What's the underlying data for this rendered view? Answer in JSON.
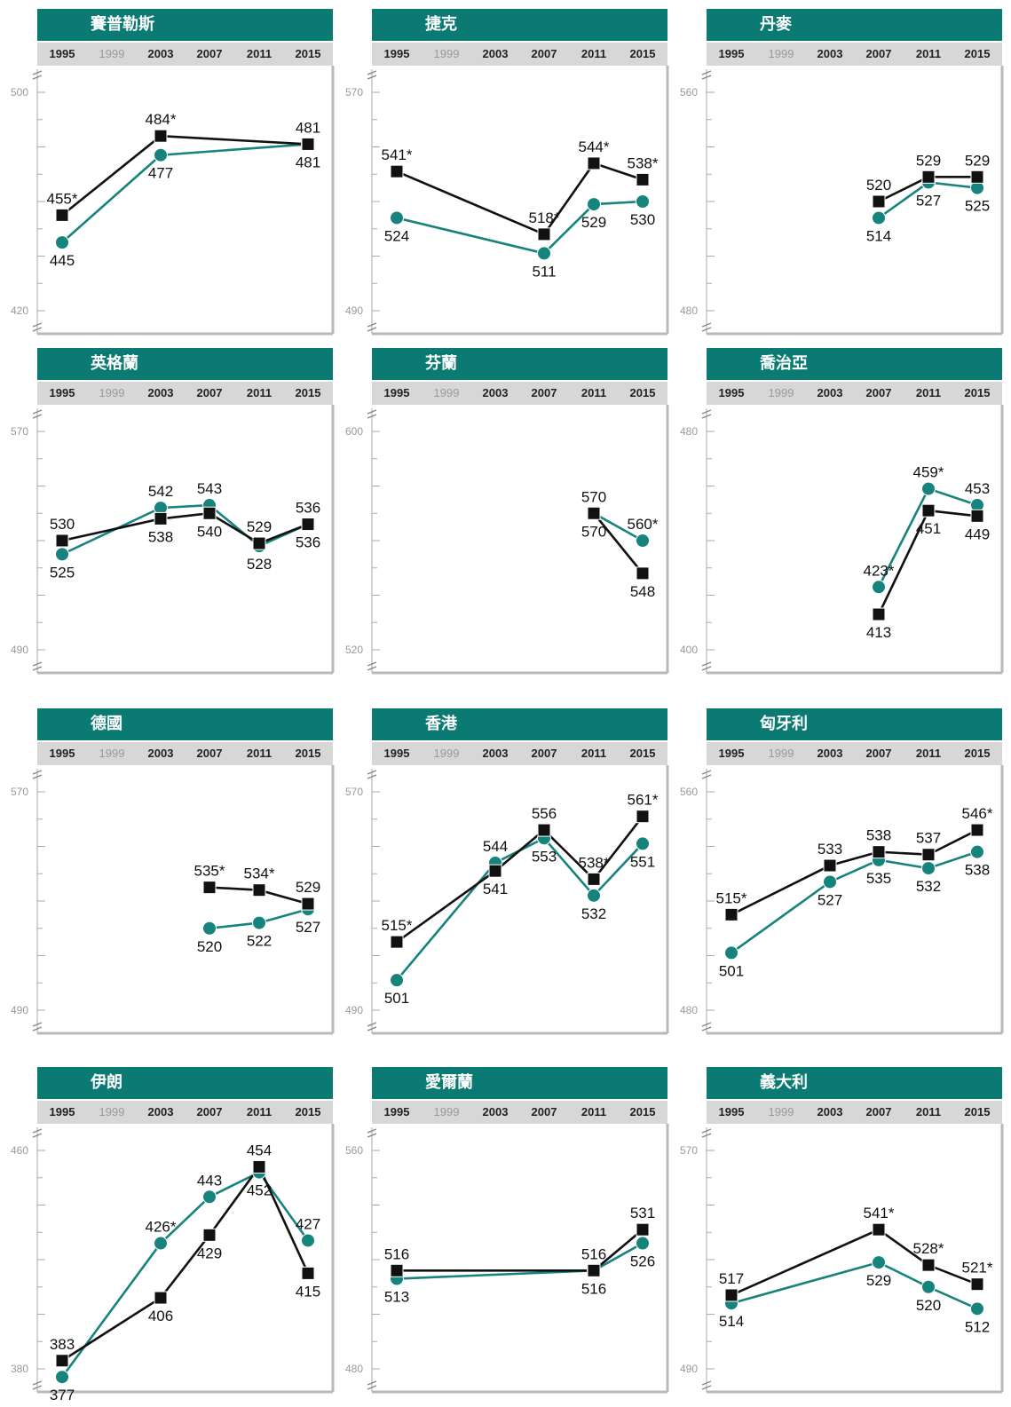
{
  "colors": {
    "header": "#0b7a73",
    "series_a": "#111111",
    "series_b": "#17837d",
    "axis": "#aaaaaa"
  },
  "years": [
    "1995",
    "1999",
    "2003",
    "2007",
    "2011",
    "2015"
  ],
  "faded_year": "1999",
  "chart_data": [
    {
      "type": "line",
      "title": "賽普勒斯",
      "ylim": [
        420,
        500
      ],
      "ytick_labels": [
        "500",
        "420"
      ],
      "series": [
        {
          "values": [
            {
              "x": "1995",
              "y": 455,
              "label": "455*"
            },
            {
              "x": "2003",
              "y": 484,
              "label": "484*"
            },
            {
              "x": "2015",
              "y": 481,
              "label": "481"
            }
          ]
        },
        {
          "values": [
            {
              "x": "1995",
              "y": 445,
              "label": "445"
            },
            {
              "x": "2003",
              "y": 477,
              "label": "477"
            },
            {
              "x": "2015",
              "y": 481,
              "label": "481"
            }
          ]
        }
      ]
    },
    {
      "type": "line",
      "title": "捷克",
      "ylim": [
        490,
        570
      ],
      "ytick_labels": [
        "570",
        "490"
      ],
      "series": [
        {
          "values": [
            {
              "x": "1995",
              "y": 541,
              "label": "541*"
            },
            {
              "x": "2007",
              "y": 518,
              "label": "518*"
            },
            {
              "x": "2011",
              "y": 544,
              "label": "544*"
            },
            {
              "x": "2015",
              "y": 538,
              "label": "538*"
            }
          ]
        },
        {
          "values": [
            {
              "x": "1995",
              "y": 524,
              "label": "524"
            },
            {
              "x": "2007",
              "y": 511,
              "label": "511"
            },
            {
              "x": "2011",
              "y": 529,
              "label": "529"
            },
            {
              "x": "2015",
              "y": 530,
              "label": "530"
            }
          ]
        }
      ]
    },
    {
      "type": "line",
      "title": "丹麥",
      "ylim": [
        480,
        560
      ],
      "ytick_labels": [
        "560",
        "480"
      ],
      "series": [
        {
          "values": [
            {
              "x": "2007",
              "y": 520,
              "label": "520"
            },
            {
              "x": "2011",
              "y": 529,
              "label": "529"
            },
            {
              "x": "2015",
              "y": 529,
              "label": "529"
            }
          ]
        },
        {
          "values": [
            {
              "x": "2007",
              "y": 514,
              "label": "514"
            },
            {
              "x": "2011",
              "y": 527,
              "label": "527"
            },
            {
              "x": "2015",
              "y": 525,
              "label": "525"
            }
          ]
        }
      ]
    },
    {
      "type": "line",
      "title": "英格蘭",
      "ylim": [
        490,
        570
      ],
      "ytick_labels": [
        "570",
        "490"
      ],
      "series": [
        {
          "values": [
            {
              "x": "1995",
              "y": 530,
              "label": "530"
            },
            {
              "x": "2003",
              "y": 538,
              "label": "538"
            },
            {
              "x": "2007",
              "y": 540,
              "label": "540"
            },
            {
              "x": "2011",
              "y": 529,
              "label": "529"
            },
            {
              "x": "2015",
              "y": 536,
              "label": "536"
            }
          ]
        },
        {
          "values": [
            {
              "x": "1995",
              "y": 525,
              "label": "525"
            },
            {
              "x": "2003",
              "y": 542,
              "label": "542"
            },
            {
              "x": "2007",
              "y": 543,
              "label": "543"
            },
            {
              "x": "2011",
              "y": 528,
              "label": "528"
            },
            {
              "x": "2015",
              "y": 536,
              "label": "536"
            }
          ]
        }
      ]
    },
    {
      "type": "line",
      "title": "芬蘭",
      "ylim": [
        520,
        600
      ],
      "ytick_labels": [
        "600",
        "520"
      ],
      "series": [
        {
          "values": [
            {
              "x": "2011",
              "y": 570,
              "label": "570"
            },
            {
              "x": "2015",
              "y": 548,
              "label": "548"
            }
          ]
        },
        {
          "values": [
            {
              "x": "2011",
              "y": 570,
              "label": "570"
            },
            {
              "x": "2015",
              "y": 560,
              "label": "560*"
            }
          ]
        }
      ]
    },
    {
      "type": "line",
      "title": "喬治亞",
      "ylim": [
        400,
        480
      ],
      "ytick_labels": [
        "480",
        "400"
      ],
      "series": [
        {
          "values": [
            {
              "x": "2007",
              "y": 413,
              "label": "413"
            },
            {
              "x": "2011",
              "y": 451,
              "label": "451"
            },
            {
              "x": "2015",
              "y": 449,
              "label": "449"
            }
          ]
        },
        {
          "values": [
            {
              "x": "2007",
              "y": 423,
              "label": "423*"
            },
            {
              "x": "2011",
              "y": 459,
              "label": "459*"
            },
            {
              "x": "2015",
              "y": 453,
              "label": "453"
            }
          ]
        }
      ]
    },
    {
      "type": "line",
      "title": "德國",
      "ylim": [
        490,
        570
      ],
      "ytick_labels": [
        "570",
        "490"
      ],
      "series": [
        {
          "values": [
            {
              "x": "2007",
              "y": 535,
              "label": "535*"
            },
            {
              "x": "2011",
              "y": 534,
              "label": "534*"
            },
            {
              "x": "2015",
              "y": 529,
              "label": "529"
            }
          ]
        },
        {
          "values": [
            {
              "x": "2007",
              "y": 520,
              "label": "520"
            },
            {
              "x": "2011",
              "y": 522,
              "label": "522"
            },
            {
              "x": "2015",
              "y": 527,
              "label": "527"
            }
          ]
        }
      ]
    },
    {
      "type": "line",
      "title": "香港",
      "ylim": [
        490,
        570
      ],
      "ytick_labels": [
        "570",
        "490"
      ],
      "series": [
        {
          "values": [
            {
              "x": "1995",
              "y": 515,
              "label": "515*"
            },
            {
              "x": "2003",
              "y": 541,
              "label": "541"
            },
            {
              "x": "2007",
              "y": 556,
              "label": "556"
            },
            {
              "x": "2011",
              "y": 538,
              "label": "538*"
            },
            {
              "x": "2015",
              "y": 561,
              "label": "561*"
            }
          ]
        },
        {
          "values": [
            {
              "x": "1995",
              "y": 501,
              "label": "501"
            },
            {
              "x": "2003",
              "y": 544,
              "label": "544"
            },
            {
              "x": "2007",
              "y": 553,
              "label": "553"
            },
            {
              "x": "2011",
              "y": 532,
              "label": "532"
            },
            {
              "x": "2015",
              "y": 551,
              "label": "551"
            }
          ]
        }
      ]
    },
    {
      "type": "line",
      "title": "匈牙利",
      "ylim": [
        480,
        560
      ],
      "ytick_labels": [
        "560",
        "480"
      ],
      "series": [
        {
          "values": [
            {
              "x": "1995",
              "y": 515,
              "label": "515*"
            },
            {
              "x": "2003",
              "y": 533,
              "label": "533"
            },
            {
              "x": "2007",
              "y": 538,
              "label": "538"
            },
            {
              "x": "2011",
              "y": 537,
              "label": "537"
            },
            {
              "x": "2015",
              "y": 546,
              "label": "546*"
            }
          ]
        },
        {
          "values": [
            {
              "x": "1995",
              "y": 501,
              "label": "501"
            },
            {
              "x": "2003",
              "y": 527,
              "label": "527"
            },
            {
              "x": "2007",
              "y": 535,
              "label": "535"
            },
            {
              "x": "2011",
              "y": 532,
              "label": "532"
            },
            {
              "x": "2015",
              "y": 538,
              "label": "538"
            }
          ]
        }
      ]
    },
    {
      "type": "line",
      "title": "伊朗",
      "ylim": [
        380,
        460
      ],
      "ytick_labels": [
        "460",
        "380"
      ],
      "series": [
        {
          "values": [
            {
              "x": "1995",
              "y": 383,
              "label": "383"
            },
            {
              "x": "2003",
              "y": 406,
              "label": "406"
            },
            {
              "x": "2007",
              "y": 429,
              "label": "429"
            },
            {
              "x": "2011",
              "y": 454,
              "label": "454"
            },
            {
              "x": "2015",
              "y": 415,
              "label": "415"
            }
          ]
        },
        {
          "values": [
            {
              "x": "1995",
              "y": 377,
              "label": "377"
            },
            {
              "x": "2003",
              "y": 426,
              "label": "426*"
            },
            {
              "x": "2007",
              "y": 443,
              "label": "443"
            },
            {
              "x": "2011",
              "y": 452,
              "label": "452"
            },
            {
              "x": "2015",
              "y": 427,
              "label": "427"
            }
          ]
        }
      ]
    },
    {
      "type": "line",
      "title": "愛爾蘭",
      "ylim": [
        480,
        560
      ],
      "ytick_labels": [
        "560",
        "480"
      ],
      "series": [
        {
          "values": [
            {
              "x": "1995",
              "y": 516,
              "label": "516"
            },
            {
              "x": "2011",
              "y": 516,
              "label": "516"
            },
            {
              "x": "2015",
              "y": 531,
              "label": "531"
            }
          ]
        },
        {
          "values": [
            {
              "x": "1995",
              "y": 513,
              "label": "513"
            },
            {
              "x": "2011",
              "y": 516,
              "label": "516"
            },
            {
              "x": "2015",
              "y": 526,
              "label": "526"
            }
          ]
        }
      ]
    },
    {
      "type": "line",
      "title": "義大利",
      "ylim": [
        490,
        570
      ],
      "ytick_labels": [
        "570",
        "490"
      ],
      "series": [
        {
          "values": [
            {
              "x": "1995",
              "y": 517,
              "label": "517"
            },
            {
              "x": "2007",
              "y": 541,
              "label": "541*"
            },
            {
              "x": "2011",
              "y": 528,
              "label": "528*"
            },
            {
              "x": "2015",
              "y": 521,
              "label": "521*"
            }
          ]
        },
        {
          "values": [
            {
              "x": "1995",
              "y": 514,
              "label": "514"
            },
            {
              "x": "2007",
              "y": 529,
              "label": "529"
            },
            {
              "x": "2011",
              "y": 520,
              "label": "520"
            },
            {
              "x": "2015",
              "y": 512,
              "label": "512"
            }
          ]
        }
      ]
    }
  ]
}
